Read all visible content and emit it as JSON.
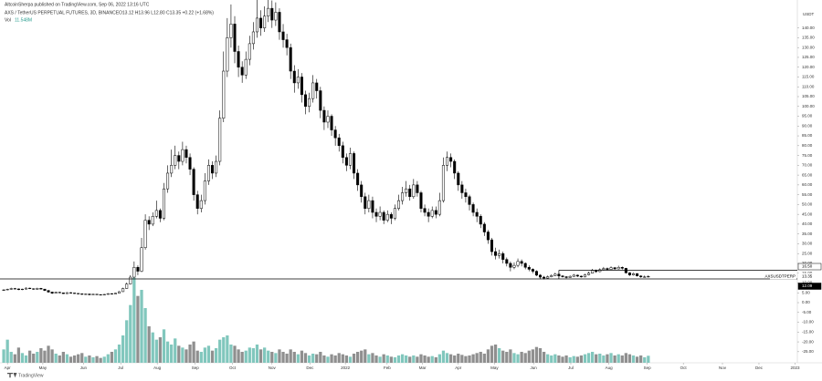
{
  "chart_data": {
    "type": "candlestick",
    "title": "AltcoinSherpa published on TradingView.com, Sep 06, 2022 13:16 UTC",
    "subtitle": "AXS / TetherUS PERPETUAL FUTURES, 3D, BINANCE",
    "ohlc_text": "O13.12 H13.96 L12.80 C13.35 +0.22 (+1.68%)",
    "volume_label": "Vol",
    "volume_text": "11.548M",
    "y_axis_label": "USDT",
    "symbol_label": "AXSUSDTPERP",
    "brand": "TradingView",
    "up_color": "#ffffff",
    "down_color": "#000000",
    "border_color": "#000000",
    "volume_up_color": "#81c7bd",
    "volume_down_color": "#8f8f8f",
    "open": [
      6.2,
      6.5,
      6.8,
      7.2,
      7.0,
      6.6,
      6.9,
      7.4,
      7.1,
      6.8,
      7.3,
      6.9,
      6.2,
      5.4,
      4.8,
      5.3,
      5.0,
      4.6,
      5.1,
      4.9,
      4.7,
      4.5,
      4.2,
      4.4,
      4.0,
      4.3,
      4.1,
      3.9,
      4.2,
      4.6,
      4.4,
      4.8,
      5.6,
      7.2,
      9.5,
      13,
      18,
      16,
      28,
      42,
      40,
      44,
      47,
      43,
      58,
      66,
      70,
      75,
      72,
      78,
      74,
      68,
      55,
      48,
      52,
      62,
      70,
      66,
      72,
      94,
      118,
      135,
      142,
      128,
      120,
      116,
      124,
      132,
      138,
      145,
      140,
      146,
      150,
      144,
      148,
      138,
      134,
      130,
      118,
      112,
      115,
      106,
      100,
      104,
      112,
      108,
      98,
      92,
      95,
      88,
      84,
      80,
      74,
      70,
      76,
      66,
      60,
      54,
      48,
      52,
      46,
      44,
      46,
      42,
      45,
      43,
      48,
      52,
      56,
      58,
      54,
      60,
      56,
      48,
      46,
      44,
      47,
      45,
      52,
      70,
      74,
      72,
      66,
      60,
      56,
      54,
      50,
      46,
      44,
      40,
      36,
      32,
      26,
      24,
      25,
      22,
      20,
      18,
      19,
      21,
      20,
      18,
      17,
      16,
      14,
      13,
      12.5,
      13.2,
      13.8,
      14.5,
      13.6,
      13.2,
      12.8,
      13.4,
      14,
      13.5,
      13.1,
      14.2,
      15,
      16.4,
      15.8,
      16.8,
      17.4,
      16.9,
      17.8,
      17.2,
      18,
      17.5,
      15.2,
      14.1,
      14.8,
      13.6,
      13.1,
      13.12
    ],
    "high": [
      6.8,
      7.1,
      7.6,
      7.5,
      7.2,
      7.1,
      7.8,
      7.6,
      7.3,
      7.6,
      7.5,
      7.0,
      6.4,
      5.6,
      5.6,
      5.5,
      5.1,
      5.3,
      5.3,
      5.0,
      4.8,
      4.6,
      4.6,
      4.5,
      4.5,
      4.4,
      4.2,
      4.4,
      4.8,
      4.7,
      5.0,
      5.9,
      7.6,
      10.2,
      14,
      21,
      19,
      33,
      45,
      44,
      46,
      52,
      48,
      61,
      70,
      78,
      80,
      77,
      82,
      80,
      76,
      69,
      57,
      55,
      66,
      73,
      72,
      75,
      98,
      128,
      145,
      152,
      146,
      131,
      123,
      128,
      136,
      143,
      155,
      149,
      151,
      158,
      154,
      153,
      150,
      142,
      137,
      132,
      121,
      119,
      117,
      108,
      107,
      116,
      114,
      110,
      100,
      98,
      96,
      90,
      86,
      82,
      76,
      79,
      77,
      68,
      62,
      56,
      55,
      54,
      48,
      49,
      47,
      47,
      46,
      50,
      55,
      59,
      62,
      60,
      63,
      62,
      57,
      50,
      48,
      49,
      49,
      56,
      74,
      77,
      76,
      73,
      67,
      62,
      58,
      55,
      51,
      48,
      45,
      41,
      37,
      33,
      28,
      27,
      26,
      23,
      21,
      20.5,
      22.5,
      22,
      20.5,
      19,
      17.5,
      16.5,
      14.5,
      13.6,
      13.8,
      14.4,
      15.2,
      14.8,
      14,
      13.5,
      13.9,
      14.6,
      14.3,
      13.8,
      14.7,
      15.8,
      17.2,
      16.9,
      17.5,
      18.2,
      17.9,
      18.5,
      18.2,
      18.8,
      18.4,
      17.7,
      15.5,
      15.3,
      15,
      13.9,
      13.8,
      13.96
    ],
    "low": [
      6.0,
      6.3,
      6.6,
      6.8,
      6.4,
      6.4,
      6.7,
      6.9,
      6.6,
      6.6,
      6.7,
      5.9,
      5.0,
      4.4,
      4.6,
      4.8,
      4.4,
      4.5,
      4.7,
      4.5,
      4.3,
      4.0,
      4.1,
      3.8,
      3.9,
      3.9,
      3.7,
      3.8,
      4.1,
      4.2,
      4.3,
      4.7,
      5.5,
      7.0,
      9.2,
      12.5,
      14,
      15.5,
      27,
      37,
      39,
      43,
      41,
      42,
      56,
      64,
      68,
      68,
      70,
      71,
      65,
      52,
      45,
      46,
      50,
      60,
      63,
      64,
      70,
      92,
      115,
      130,
      122,
      115,
      112,
      114,
      121,
      129,
      135,
      136,
      138,
      143,
      140,
      141,
      134,
      130,
      126,
      114,
      107,
      109,
      102,
      96,
      97,
      102,
      104,
      94,
      88,
      89,
      85,
      80,
      77,
      71,
      67,
      68,
      63,
      57,
      51,
      45,
      46,
      43,
      41,
      42,
      40,
      41,
      40,
      42,
      47,
      50,
      54,
      52,
      53,
      54,
      46,
      44,
      41,
      43,
      43,
      44,
      51,
      67,
      69,
      63,
      57,
      53,
      51,
      47,
      44,
      41,
      38,
      34,
      30,
      24,
      22,
      22.5,
      20,
      18.5,
      16,
      17,
      18,
      18.5,
      17,
      16,
      15,
      13.5,
      12,
      11.8,
      12.2,
      12.9,
      13.5,
      13.2,
      12.8,
      12.3,
      12.6,
      13.1,
      13.1,
      12.8,
      12.9,
      13.9,
      14.8,
      15.2,
      15.5,
      16.4,
      16.3,
      16.6,
      16.8,
      16.9,
      16.9,
      14.8,
      13.6,
      13.8,
      13.3,
      12.7,
      12.9,
      12.8
    ],
    "close": [
      6.5,
      6.8,
      7.2,
      7.0,
      6.6,
      6.9,
      7.4,
      7.1,
      6.8,
      7.3,
      6.9,
      6.2,
      5.4,
      4.8,
      5.3,
      5.0,
      4.6,
      5.1,
      4.9,
      4.7,
      4.5,
      4.2,
      4.4,
      4.0,
      4.3,
      4.1,
      3.9,
      4.2,
      4.6,
      4.4,
      4.8,
      5.6,
      7.2,
      9.5,
      13,
      18,
      16,
      28,
      42,
      40,
      44,
      47,
      43,
      58,
      66,
      70,
      75,
      72,
      78,
      74,
      68,
      55,
      48,
      52,
      62,
      70,
      66,
      72,
      94,
      118,
      135,
      142,
      128,
      120,
      116,
      124,
      132,
      138,
      145,
      140,
      146,
      150,
      144,
      148,
      138,
      134,
      130,
      118,
      112,
      115,
      106,
      100,
      104,
      112,
      108,
      98,
      92,
      95,
      88,
      84,
      80,
      74,
      70,
      76,
      66,
      60,
      54,
      48,
      52,
      46,
      44,
      46,
      42,
      45,
      43,
      48,
      52,
      56,
      58,
      54,
      60,
      56,
      48,
      46,
      44,
      47,
      45,
      52,
      70,
      74,
      72,
      66,
      60,
      56,
      54,
      50,
      46,
      44,
      40,
      36,
      32,
      26,
      24,
      25,
      22,
      20,
      18,
      19,
      21,
      20,
      18,
      17,
      16,
      14,
      13,
      12.5,
      13.2,
      13.8,
      14.5,
      13.6,
      13.2,
      12.8,
      13.4,
      14,
      13.5,
      13.1,
      14.2,
      15,
      16.4,
      15.8,
      16.8,
      17.4,
      16.9,
      17.8,
      17.2,
      18,
      17.5,
      15.2,
      14.1,
      14.8,
      13.6,
      13.1,
      13.13,
      13.35
    ],
    "volume": [
      22,
      38,
      18,
      14,
      25,
      16,
      12,
      20,
      15,
      18,
      24,
      20,
      28,
      22,
      15,
      12,
      18,
      14,
      10,
      12,
      14,
      16,
      10,
      12,
      9,
      11,
      8,
      10,
      14,
      18,
      22,
      30,
      45,
      70,
      95,
      140,
      110,
      120,
      90,
      60,
      50,
      38,
      42,
      55,
      35,
      30,
      40,
      28,
      25,
      22,
      30,
      35,
      20,
      18,
      25,
      28,
      20,
      24,
      38,
      42,
      45,
      30,
      28,
      22,
      18,
      20,
      25,
      24,
      30,
      22,
      25,
      20,
      18,
      16,
      22,
      18,
      15,
      22,
      18,
      14,
      20,
      16,
      12,
      15,
      14,
      18,
      12,
      10,
      14,
      12,
      16,
      14,
      12,
      10,
      15,
      18,
      20,
      22,
      14,
      16,
      12,
      10,
      14,
      12,
      10,
      9,
      12,
      14,
      12,
      10,
      12,
      10,
      14,
      12,
      10,
      11,
      9,
      14,
      20,
      16,
      14,
      12,
      15,
      13,
      11,
      12,
      14,
      16,
      18,
      15,
      22,
      28,
      30,
      24,
      20,
      18,
      22,
      16,
      14,
      18,
      16,
      20,
      22,
      26,
      24,
      18,
      14,
      12,
      14,
      12,
      10,
      12,
      9,
      11,
      10,
      12,
      14,
      16,
      18,
      14,
      15,
      12,
      14,
      16,
      12,
      14,
      12,
      16,
      14,
      12,
      10,
      12,
      9,
      11.548
    ],
    "vlim": [
      0,
      150
    ],
    "xlim": [
      -1,
      213
    ],
    "xticks": [
      {
        "value": 1,
        "label": "Apr"
      },
      {
        "value": 10.5,
        "label": "May"
      },
      {
        "value": 21.4,
        "label": "Jun"
      },
      {
        "value": 31.4,
        "label": "Jul"
      },
      {
        "value": 41.2,
        "label": "Aug"
      },
      {
        "value": 51.4,
        "label": "Sep"
      },
      {
        "value": 61.4,
        "label": "Oct"
      },
      {
        "value": 72,
        "label": "Nov"
      },
      {
        "value": 82.2,
        "label": "Dec"
      },
      {
        "value": 91.7,
        "label": "2022"
      },
      {
        "value": 102.9,
        "label": "Feb"
      },
      {
        "value": 112.4,
        "label": "Mar"
      },
      {
        "value": 122,
        "label": "Apr"
      },
      {
        "value": 131.7,
        "label": "May"
      },
      {
        "value": 142.2,
        "label": "Jun"
      },
      {
        "value": 152.2,
        "label": "Jul"
      },
      {
        "value": 162.4,
        "label": "Aug"
      },
      {
        "value": 172.7,
        "label": "Sep"
      },
      {
        "value": 182.4,
        "label": "Oct"
      },
      {
        "value": 192.9,
        "label": "Nov"
      },
      {
        "value": 202.7,
        "label": "Dec"
      },
      {
        "value": 212.4,
        "label": "2023"
      }
    ],
    "ylim": [
      -30.65,
      149.6
    ],
    "yticks": [
      {
        "value": -25,
        "label": "-25.00"
      },
      {
        "value": -20,
        "label": "-20.00"
      },
      {
        "value": -15,
        "label": "-15.00"
      },
      {
        "value": -10,
        "label": "-10.00"
      },
      {
        "value": -5,
        "label": "-5.00"
      },
      {
        "value": 0,
        "label": "0.00"
      },
      {
        "value": 5,
        "label": "5.00"
      },
      {
        "value": 10,
        "label": "10.00"
      },
      {
        "value": 15,
        "label": "15.00"
      },
      {
        "value": 20,
        "label": "20.00"
      },
      {
        "value": 25,
        "label": "25.00"
      },
      {
        "value": 30,
        "label": "30.00"
      },
      {
        "value": 35,
        "label": "35.00"
      },
      {
        "value": 40,
        "label": "40.00"
      },
      {
        "value": 45,
        "label": "45.00"
      },
      {
        "value": 50,
        "label": "50.00"
      },
      {
        "value": 55,
        "label": "55.00"
      },
      {
        "value": 60,
        "label": "60.00"
      },
      {
        "value": 65,
        "label": "65.00"
      },
      {
        "value": 70,
        "label": "70.00"
      },
      {
        "value": 75,
        "label": "75.00"
      },
      {
        "value": 80,
        "label": "80.00"
      },
      {
        "value": 85,
        "label": "85.00"
      },
      {
        "value": 90,
        "label": "90.00"
      },
      {
        "value": 95,
        "label": "95.00"
      },
      {
        "value": 100,
        "label": "100.00"
      },
      {
        "value": 105,
        "label": "105.00"
      },
      {
        "value": 110,
        "label": "110.00"
      },
      {
        "value": 115,
        "label": "115.00"
      },
      {
        "value": 120,
        "label": "120.00"
      },
      {
        "value": 125,
        "label": "125.00"
      },
      {
        "value": 130,
        "label": "130.00"
      },
      {
        "value": 135,
        "label": "135.00"
      },
      {
        "value": 140,
        "label": "140.00"
      }
    ],
    "levels": [
      {
        "value": 16.5,
        "label": "16.50",
        "start": 149
      },
      {
        "value": 12.09,
        "label": "12.09"
      }
    ]
  }
}
